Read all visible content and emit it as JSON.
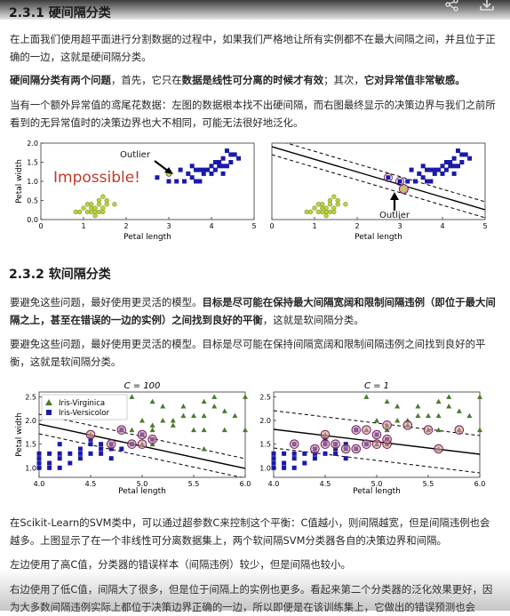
{
  "section1": {
    "title": "2.3.1 硬间隔分类",
    "p1": "在上面我们使用超平面进行分割数据的过程中，如果我们严格地让所有实例都不在最大间隔之间，并且位于正确的一边，这就是硬间隔分类。",
    "p2_a": "硬间隔分类有两个问题",
    "p2_b": "，首先，它只在",
    "p2_c": "数据是线性可分离的时候才有效",
    "p2_d": "；其次，",
    "p2_e": "它对异常值非常敏感。",
    "p3": "当有一个额外异常值的鸢尾花数据：左图的数据根本找不出硬间隔，而右图最终显示的决策边界与我们之前所看到的无异常值时的决策边界也大不相同，可能无法很好地泛化。"
  },
  "figure1": {
    "left": {
      "annotation": "Outlier",
      "label": "Impossible!",
      "xlabel": "Petal length",
      "ylabel": "Petal width"
    },
    "right": {
      "annotation": "Outlier",
      "xlabel": "Petal length"
    }
  },
  "section2": {
    "title": "2.3.2 软间隔分类",
    "p1_a": "要避免这些问题，最好使用更灵活的模型。",
    "p1_b": "目标是尽可能在保持最大间隔宽阔和限制间隔违例（即位于最大间隔之上，甚至在错误的一边的实例）之间找到良好的平衡",
    "p1_c": "，这就是软间隔分类。",
    "p2": "要避免这些问题，最好使用更灵活的模型。目标是尽可能在保持间隔宽阔和限制间隔违例之间找到良好的平衡，这就是软间隔分类。",
    "p3": "在Scikit-Learn的SVM类中，可以通过超参数C来控制这个平衡：C值越小，则间隔越宽，但是间隔违例也会越多。上图显示了在一个非线性可分离数据集上，两个软间隔SVM分类器各自的决策边界和间隔。",
    "p4": "左边使用了高C值，分类器的错误样本（间隔违例）较少，但是间隔也较小。",
    "p5": "右边使用了低C值，间隔大了很多，但是位于间隔上的实例也更多。看起来第二个分类器的泛化效果更好，因为大多数间隔违例实际上都位于决策边界正确的一边，所以即便是在该训练集上，它做出的错误预测也会"
  },
  "figure2": {
    "left": {
      "title": "C = 100",
      "legend": [
        "Iris-Virginica",
        "Iris-Versicolor"
      ],
      "xlabel": "Petal length",
      "ylabel": "Petal width"
    },
    "right": {
      "title": "C = 1",
      "xlabel": "Petal length"
    }
  },
  "chart_data": [
    {
      "type": "scatter",
      "title": "",
      "xlabel": "Petal length",
      "ylabel": "Petal width",
      "xlim": [
        0,
        5.5
      ],
      "ylim": [
        0,
        2.0
      ],
      "xticks": [
        "0",
        "1",
        "2",
        "3",
        "4",
        "5"
      ],
      "yticks": [
        "0.0",
        "0.5",
        "1.0",
        "1.5",
        "2.0"
      ],
      "series": [
        {
          "values": [
            [
              0.9,
              0.2
            ],
            [
              1.0,
              0.2
            ],
            [
              1.1,
              0.3
            ],
            [
              1.2,
              0.2
            ],
            [
              1.3,
              0.3
            ],
            [
              1.3,
              0.4
            ],
            [
              1.4,
              0.2
            ],
            [
              1.4,
              0.3
            ],
            [
              1.5,
              0.4
            ],
            [
              1.5,
              0.2
            ],
            [
              1.6,
              0.6
            ],
            [
              1.6,
              0.3
            ],
            [
              1.7,
              0.4
            ],
            [
              1.7,
              0.5
            ],
            [
              1.4,
              0.1
            ],
            [
              1.5,
              0.5
            ],
            [
              1.6,
              0.2
            ],
            [
              1.2,
              0.4
            ],
            [
              1.9,
              0.4
            ],
            [
              1.3,
              0.2
            ]
          ]
        },
        {
          "values": [
            [
              3.0,
              1.1
            ],
            [
              3.3,
              1.0
            ],
            [
              3.5,
              1.0
            ],
            [
              3.7,
              1.0
            ],
            [
              3.9,
              1.1
            ],
            [
              4.0,
              1.0
            ],
            [
              3.6,
              1.3
            ],
            [
              3.8,
              1.2
            ],
            [
              4.0,
              1.3
            ],
            [
              4.1,
              1.3
            ],
            [
              4.2,
              1.2
            ],
            [
              4.3,
              1.3
            ],
            [
              4.4,
              1.4
            ],
            [
              4.5,
              1.5
            ],
            [
              4.6,
              1.4
            ],
            [
              4.7,
              1.4
            ],
            [
              4.5,
              1.3
            ],
            [
              4.6,
              1.5
            ],
            [
              4.8,
              1.8
            ],
            [
              4.9,
              1.5
            ],
            [
              4.8,
              1.4
            ],
            [
              4.4,
              1.2
            ],
            [
              4.2,
              1.3
            ],
            [
              5.0,
              1.7
            ],
            [
              5.1,
              1.6
            ],
            [
              4.7,
              1.6
            ],
            [
              4.9,
              1.7
            ],
            [
              4.1,
              1.0
            ],
            [
              4.7,
              1.2
            ],
            [
              3.9,
              1.4
            ]
          ]
        },
        {
          "values": [
            [
              3.3,
              1.2
            ]
          ]
        }
      ]
    },
    {
      "type": "scatter",
      "title": "",
      "xlabel": "Petal length",
      "ylabel": "",
      "xlim": [
        0,
        5.5
      ],
      "ylim": [
        0,
        2.0
      ],
      "xticks": [
        "0",
        "1",
        "2",
        "3",
        "4",
        "5"
      ],
      "yticks": [],
      "series": [
        {
          "values": [
            [
              0.9,
              0.2
            ],
            [
              1.0,
              0.2
            ],
            [
              1.1,
              0.3
            ],
            [
              1.2,
              0.2
            ],
            [
              1.3,
              0.3
            ],
            [
              1.3,
              0.4
            ],
            [
              1.4,
              0.2
            ],
            [
              1.4,
              0.3
            ],
            [
              1.5,
              0.4
            ],
            [
              1.5,
              0.2
            ],
            [
              1.6,
              0.6
            ],
            [
              1.6,
              0.3
            ],
            [
              1.7,
              0.4
            ],
            [
              1.7,
              0.5
            ],
            [
              1.4,
              0.1
            ],
            [
              1.5,
              0.5
            ],
            [
              1.6,
              0.2
            ],
            [
              1.2,
              0.4
            ],
            [
              1.9,
              0.4
            ],
            [
              1.3,
              0.2
            ]
          ]
        },
        {
          "values": [
            [
              3.0,
              1.1
            ],
            [
              3.3,
              1.0
            ],
            [
              3.5,
              1.0
            ],
            [
              3.7,
              1.0
            ],
            [
              3.9,
              1.1
            ],
            [
              4.0,
              1.0
            ],
            [
              3.6,
              1.3
            ],
            [
              3.8,
              1.2
            ],
            [
              4.0,
              1.3
            ],
            [
              4.1,
              1.3
            ],
            [
              4.2,
              1.2
            ],
            [
              4.3,
              1.3
            ],
            [
              4.4,
              1.4
            ],
            [
              4.5,
              1.5
            ],
            [
              4.6,
              1.4
            ],
            [
              4.7,
              1.4
            ],
            [
              4.5,
              1.3
            ],
            [
              4.6,
              1.5
            ],
            [
              4.8,
              1.8
            ],
            [
              4.9,
              1.5
            ],
            [
              4.8,
              1.4
            ],
            [
              4.4,
              1.2
            ],
            [
              4.2,
              1.3
            ],
            [
              5.0,
              1.7
            ],
            [
              5.1,
              1.6
            ],
            [
              4.7,
              1.6
            ],
            [
              4.9,
              1.7
            ],
            [
              4.1,
              1.0
            ],
            [
              4.7,
              1.2
            ],
            [
              3.9,
              1.4
            ]
          ]
        },
        {
          "values": [
            [
              3.4,
              0.8
            ]
          ]
        }
      ]
    },
    {
      "type": "scatter",
      "title": "C = 100",
      "xlabel": "Petal length",
      "ylabel": "Petal width",
      "xlim": [
        4.0,
        6.0
      ],
      "ylim": [
        0.8,
        2.6
      ],
      "xticks": [
        "4.0",
        "4.5",
        "5.0",
        "5.5",
        "6.0"
      ],
      "yticks": [
        "1.0",
        "1.5",
        "2.0",
        "2.5"
      ],
      "legend": "top-left",
      "series": [
        {
          "name": "Iris-Virginica",
          "values": [
            [
              4.5,
              1.7
            ],
            [
              4.8,
              1.8
            ],
            [
              4.9,
              1.8
            ],
            [
              5.0,
              1.5
            ],
            [
              5.1,
              1.9
            ],
            [
              5.1,
              1.5
            ],
            [
              5.6,
              2.4
            ],
            [
              5.7,
              2.3
            ],
            [
              5.8,
              2.2
            ],
            [
              6.0,
              2.5
            ],
            [
              5.5,
              2.1
            ],
            [
              5.2,
              2.3
            ],
            [
              5.3,
              1.9
            ],
            [
              5.4,
              2.3
            ],
            [
              5.6,
              2.1
            ],
            [
              5.9,
              2.1
            ],
            [
              5.6,
              1.8
            ],
            [
              5.1,
              2.4
            ],
            [
              5.4,
              2.1
            ],
            [
              5.7,
              2.5
            ],
            [
              5.0,
              2.0
            ],
            [
              5.2,
              2.0
            ],
            [
              5.8,
              1.8
            ],
            [
              4.9,
              2.5
            ],
            [
              5.5,
              1.8
            ],
            [
              6.0,
              1.8
            ],
            [
              5.1,
              1.8
            ],
            [
              5.6,
              1.4
            ],
            [
              5.3,
              2.0
            ],
            [
              4.8,
              1.8
            ]
          ]
        },
        {
          "name": "Iris-Versicolor",
          "values": [
            [
              4.0,
              1.0
            ],
            [
              4.0,
              1.3
            ],
            [
              4.1,
              1.0
            ],
            [
              4.1,
              1.3
            ],
            [
              4.2,
              1.2
            ],
            [
              4.2,
              1.3
            ],
            [
              4.2,
              1.5
            ],
            [
              4.3,
              1.3
            ],
            [
              4.4,
              1.4
            ],
            [
              4.4,
              1.2
            ],
            [
              4.5,
              1.5
            ],
            [
              4.5,
              1.3
            ],
            [
              4.6,
              1.4
            ],
            [
              4.6,
              1.5
            ],
            [
              4.7,
              1.4
            ],
            [
              4.7,
              1.2
            ],
            [
              4.8,
              1.4
            ],
            [
              4.8,
              1.8
            ],
            [
              4.9,
              1.5
            ],
            [
              5.0,
              1.7
            ],
            [
              5.1,
              1.6
            ],
            [
              4.0,
              1.2
            ],
            [
              4.1,
              1.1
            ],
            [
              4.3,
              1.1
            ],
            [
              4.5,
              1.6
            ],
            [
              4.7,
              1.5
            ],
            [
              4.6,
              1.3
            ],
            [
              4.4,
              1.3
            ],
            [
              4.2,
              1.0
            ],
            [
              4.0,
              1.1
            ]
          ]
        }
      ]
    },
    {
      "type": "scatter",
      "title": "C = 1",
      "xlabel": "Petal length",
      "ylabel": "",
      "xlim": [
        4.0,
        6.0
      ],
      "ylim": [
        0.8,
        2.6
      ],
      "xticks": [
        "4.0",
        "4.5",
        "5.0",
        "5.5",
        "6.0"
      ],
      "yticks": [
        "1.0",
        "1.5",
        "2.0",
        "2.5"
      ],
      "series": [
        {
          "name": "Iris-Virginica",
          "values": [
            [
              4.5,
              1.7
            ],
            [
              4.8,
              1.8
            ],
            [
              4.9,
              1.8
            ],
            [
              5.0,
              1.5
            ],
            [
              5.1,
              1.9
            ],
            [
              5.1,
              1.5
            ],
            [
              5.6,
              2.4
            ],
            [
              5.7,
              2.3
            ],
            [
              5.8,
              2.2
            ],
            [
              6.0,
              2.5
            ],
            [
              5.5,
              2.1
            ],
            [
              5.2,
              2.3
            ],
            [
              5.3,
              1.9
            ],
            [
              5.4,
              2.3
            ],
            [
              5.6,
              2.1
            ],
            [
              5.9,
              2.1
            ],
            [
              5.6,
              1.8
            ],
            [
              5.1,
              2.4
            ],
            [
              5.4,
              2.1
            ],
            [
              5.7,
              2.5
            ],
            [
              5.0,
              2.0
            ],
            [
              5.2,
              2.0
            ],
            [
              5.8,
              1.8
            ],
            [
              4.9,
              2.5
            ],
            [
              5.5,
              1.8
            ],
            [
              6.0,
              1.8
            ],
            [
              5.1,
              1.8
            ],
            [
              5.6,
              1.4
            ],
            [
              5.3,
              2.0
            ],
            [
              4.8,
              1.8
            ]
          ]
        },
        {
          "name": "Iris-Versicolor",
          "values": [
            [
              4.0,
              1.0
            ],
            [
              4.0,
              1.3
            ],
            [
              4.1,
              1.0
            ],
            [
              4.1,
              1.3
            ],
            [
              4.2,
              1.2
            ],
            [
              4.2,
              1.3
            ],
            [
              4.2,
              1.5
            ],
            [
              4.3,
              1.3
            ],
            [
              4.4,
              1.4
            ],
            [
              4.4,
              1.2
            ],
            [
              4.5,
              1.5
            ],
            [
              4.5,
              1.3
            ],
            [
              4.6,
              1.4
            ],
            [
              4.6,
              1.5
            ],
            [
              4.7,
              1.4
            ],
            [
              4.7,
              1.2
            ],
            [
              4.8,
              1.4
            ],
            [
              4.8,
              1.8
            ],
            [
              4.9,
              1.5
            ],
            [
              5.0,
              1.7
            ],
            [
              5.1,
              1.6
            ],
            [
              4.0,
              1.2
            ],
            [
              4.1,
              1.1
            ],
            [
              4.3,
              1.1
            ],
            [
              4.5,
              1.6
            ],
            [
              4.7,
              1.5
            ],
            [
              4.6,
              1.3
            ],
            [
              4.4,
              1.3
            ],
            [
              4.2,
              1.0
            ],
            [
              4.0,
              1.1
            ]
          ]
        }
      ]
    }
  ],
  "colors": {
    "versicolor": "#1a1aa8",
    "setosa": "#b9d43c",
    "virginica": "#4a7a2c",
    "impossible": "#c0392b",
    "support": "#7a1c5e"
  },
  "icons": [
    "share-icon",
    "download-icon"
  ]
}
